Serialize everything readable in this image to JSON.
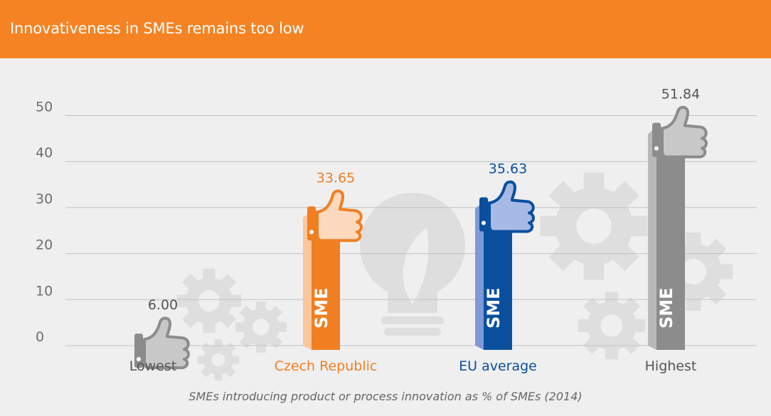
{
  "header": {
    "title": "Innovativeness in SMEs remains too low"
  },
  "caption": "SMEs introducing product or process innovation as % of SMEs (2014)",
  "chart_data": {
    "type": "bar",
    "title": "Innovativeness in SMEs remains too low",
    "xlabel": "",
    "ylabel": "SMEs introducing product or process innovation as % of SMEs (2014)",
    "categories": [
      "Lowest",
      "Czech Republic",
      "EU average",
      "Highest"
    ],
    "values": [
      6.0,
      33.65,
      35.63,
      51.84
    ],
    "value_labels": [
      "6.00",
      "33.65",
      "35.63",
      "51.84"
    ],
    "yticks": [
      0,
      10,
      20,
      30,
      40,
      50
    ],
    "ytick_labels": [
      "0",
      "10",
      "20",
      "30",
      "40",
      "50"
    ],
    "ylim": [
      0,
      55
    ],
    "grid": true,
    "bar_label": "SME",
    "colors": {
      "bars": [
        "#8c8c8c",
        "#f07f22",
        "#0a4f9e",
        "#8c8c8c"
      ],
      "bars_shadow": [
        "#b5b5b5",
        "#fbc69a",
        "#7d9ad6",
        "#b8b8b8"
      ],
      "thumbs": [
        "#c8c8c8",
        "#fdd9bd",
        "#a7bae6",
        "#c8c8c8"
      ],
      "labels": [
        "#555555",
        "#f07f22",
        "#0a4f9e",
        "#555555"
      ],
      "value_labels": [
        "#555555",
        "#f07f22",
        "#0a4f9e",
        "#555555"
      ],
      "background_art": "#dedede",
      "header": "#f58323"
    }
  }
}
